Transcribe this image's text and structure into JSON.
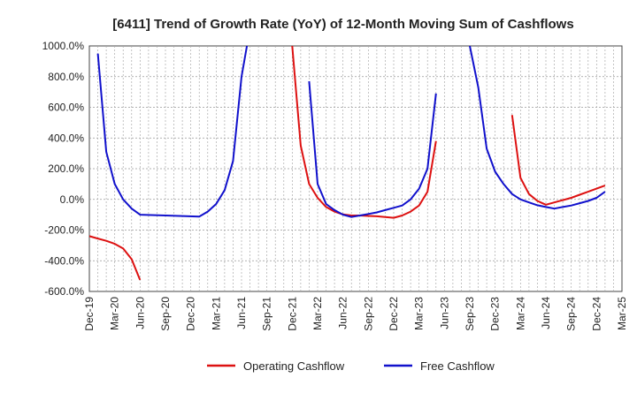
{
  "chart_data": {
    "type": "line",
    "title": "[6411]  Trend of Growth Rate (YoY) of 12-Month Moving Sum of Cashflows",
    "y_unit_suffix": "%",
    "ylim": [
      -600,
      1000
    ],
    "y_ticks": [
      1000,
      800,
      600,
      400,
      200,
      0,
      -200,
      -400,
      -600
    ],
    "y_tick_labels": [
      "1000.0%",
      "800.0%",
      "600.0%",
      "400.0%",
      "200.0%",
      "0.0%",
      "-200.0%",
      "-400.0%",
      "-600.0%"
    ],
    "x_tick_labels": [
      "Dec-19",
      "Mar-20",
      "Jun-20",
      "Sep-20",
      "Dec-20",
      "Mar-21",
      "Jun-21",
      "Sep-21",
      "Dec-21",
      "Mar-22",
      "Jun-22",
      "Sep-22",
      "Dec-22",
      "Mar-23",
      "Jun-23",
      "Sep-23",
      "Dec-23",
      "Mar-24",
      "Jun-24",
      "Sep-24",
      "Dec-24",
      "Mar-25"
    ],
    "grid": true,
    "legend_position": "bottom",
    "series": [
      {
        "name": "Operating Cashflow",
        "color": "#dd1111",
        "segments": [
          [
            [
              "2019-12",
              -240
            ],
            [
              "2020-01",
              -255
            ],
            [
              "2020-02",
              -270
            ],
            [
              "2020-03",
              -290
            ],
            [
              "2020-04",
              -320
            ],
            [
              "2020-05",
              -390
            ],
            [
              "2020-06",
              -525
            ]
          ],
          [
            [
              "2021-12",
              1000
            ],
            [
              "2022-01",
              350
            ],
            [
              "2022-02",
              100
            ],
            [
              "2022-03",
              10
            ],
            [
              "2022-04",
              -50
            ],
            [
              "2022-05",
              -80
            ],
            [
              "2022-06",
              -98
            ],
            [
              "2022-07",
              -105
            ],
            [
              "2022-08",
              -105
            ],
            [
              "2022-09",
              -108
            ],
            [
              "2022-10",
              -110
            ],
            [
              "2022-11",
              -115
            ],
            [
              "2022-12",
              -120
            ],
            [
              "2023-01",
              -105
            ],
            [
              "2023-02",
              -80
            ],
            [
              "2023-03",
              -40
            ],
            [
              "2023-04",
              50
            ],
            [
              "2023-05",
              380
            ]
          ],
          [
            [
              "2024-02",
              550
            ],
            [
              "2024-03",
              140
            ],
            [
              "2024-04",
              35
            ],
            [
              "2024-05",
              -10
            ],
            [
              "2024-06",
              -35
            ],
            [
              "2024-07",
              -20
            ],
            [
              "2024-08",
              -5
            ],
            [
              "2024-09",
              10
            ],
            [
              "2024-10",
              30
            ],
            [
              "2024-11",
              50
            ],
            [
              "2024-12",
              70
            ],
            [
              "2025-01",
              90
            ]
          ]
        ]
      },
      {
        "name": "Free Cashflow",
        "color": "#1111cc",
        "segments": [
          [
            [
              "2020-01",
              950
            ],
            [
              "2020-02",
              310
            ],
            [
              "2020-03",
              100
            ],
            [
              "2020-04",
              0
            ],
            [
              "2020-05",
              -60
            ],
            [
              "2020-06",
              -100
            ],
            [
              "2020-09",
              -105
            ],
            [
              "2021-01",
              -112
            ],
            [
              "2021-02",
              -80
            ],
            [
              "2021-03",
              -30
            ],
            [
              "2021-04",
              60
            ],
            [
              "2021-05",
              250
            ],
            [
              "2021-06",
              800
            ],
            [
              "2021-06-20",
              1000
            ]
          ],
          [
            [
              "2022-02",
              770
            ],
            [
              "2022-03",
              100
            ],
            [
              "2022-04",
              -30
            ],
            [
              "2022-05",
              -70
            ],
            [
              "2022-06",
              -100
            ],
            [
              "2022-07",
              -115
            ],
            [
              "2022-08",
              -105
            ],
            [
              "2022-09",
              -95
            ],
            [
              "2022-10",
              -85
            ],
            [
              "2022-11",
              -70
            ],
            [
              "2022-12",
              -55
            ],
            [
              "2023-01",
              -40
            ],
            [
              "2023-02",
              0
            ],
            [
              "2023-03",
              70
            ],
            [
              "2023-04",
              200
            ],
            [
              "2023-05",
              690
            ]
          ],
          [
            [
              "2023-09",
              1000
            ],
            [
              "2023-10",
              730
            ],
            [
              "2023-11",
              330
            ],
            [
              "2023-12",
              180
            ],
            [
              "2024-01",
              100
            ],
            [
              "2024-02",
              35
            ],
            [
              "2024-03",
              0
            ],
            [
              "2024-04",
              -20
            ],
            [
              "2024-05",
              -38
            ],
            [
              "2024-06",
              -50
            ],
            [
              "2024-07",
              -60
            ],
            [
              "2024-08",
              -50
            ],
            [
              "2024-09",
              -40
            ],
            [
              "2024-10",
              -25
            ],
            [
              "2024-11",
              -10
            ],
            [
              "2024-12",
              10
            ],
            [
              "2025-01",
              50
            ]
          ]
        ]
      }
    ]
  }
}
